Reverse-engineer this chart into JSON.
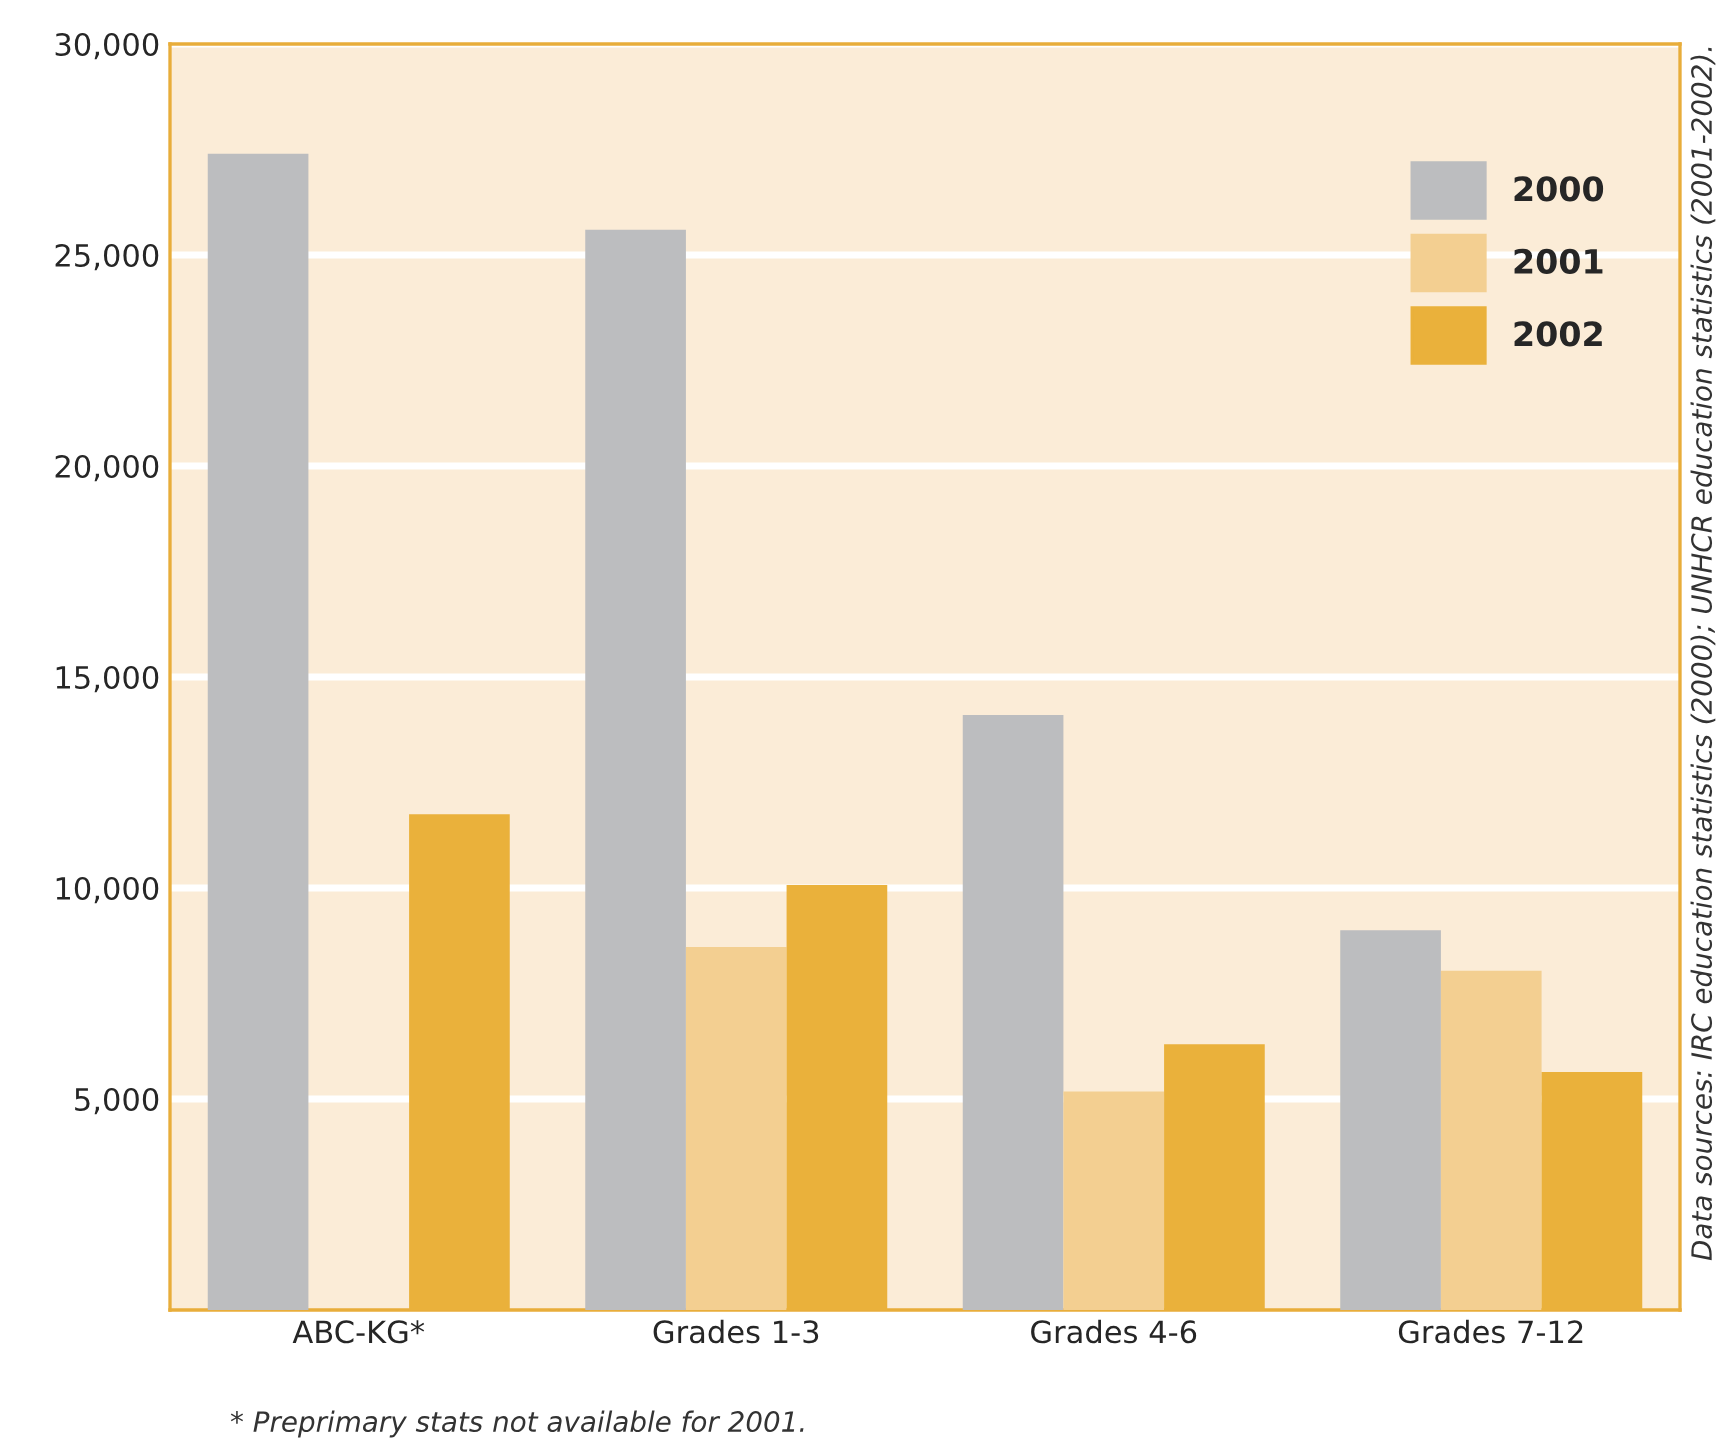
{
  "chart_data": {
    "type": "bar",
    "categories": [
      "ABC-KG*",
      "Grades 1-3",
      "Grades 4-6",
      "Grades 7-12"
    ],
    "series": [
      {
        "name": "2000",
        "color": "#bcbdbf",
        "values": [
          27400,
          25600,
          14100,
          9000
        ]
      },
      {
        "name": "2001",
        "color": "#f3cf91",
        "values": [
          null,
          8600,
          5180,
          8040
        ]
      },
      {
        "name": "2002",
        "color": "#eab13b",
        "values": [
          11750,
          10070,
          6300,
          5640
        ]
      }
    ],
    "ylim": [
      0,
      30000
    ],
    "yticks": [
      {
        "value": 5000,
        "label": "5,000"
      },
      {
        "value": 10000,
        "label": "10,000"
      },
      {
        "value": 15000,
        "label": "15,000"
      },
      {
        "value": 20000,
        "label": "20,000"
      },
      {
        "value": 25000,
        "label": "25,000"
      },
      {
        "value": 30000,
        "label": "30,000"
      }
    ],
    "grid": "y",
    "legend": "top right",
    "annotations": [
      "* Preprimary stats not available for 2001.",
      "Data sources: IRC education statistics (2000); UNHCR education statistics (2001-2002)."
    ]
  }
}
